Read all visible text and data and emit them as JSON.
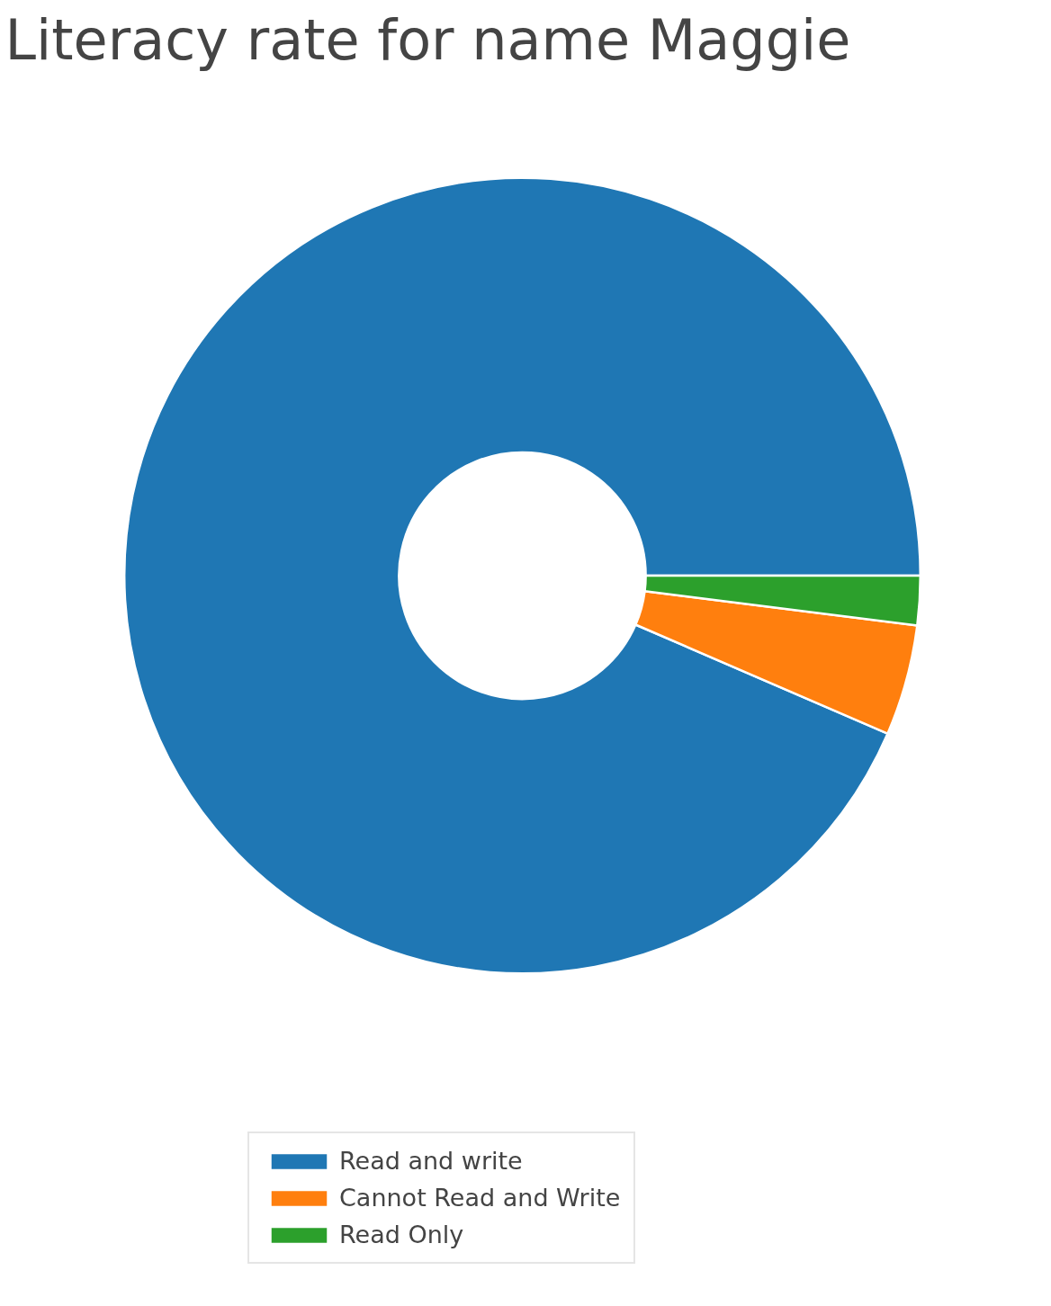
{
  "chart_data": {
    "type": "donut",
    "title": "Literacy rate for name Maggie",
    "categories": [
      "Read and write",
      "Cannot Read and Write",
      "Read Only"
    ],
    "values": [
      93.5,
      4.5,
      2.0
    ],
    "colors": [
      "#1f77b4",
      "#ff7f0e",
      "#2ca02c"
    ],
    "legend": "bottom"
  }
}
